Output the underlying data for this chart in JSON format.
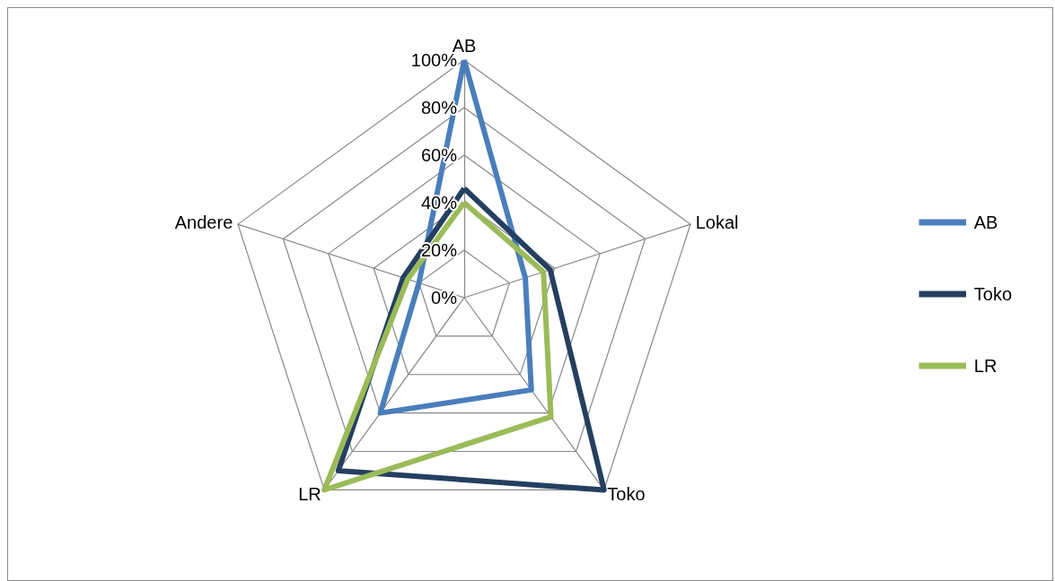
{
  "chart_data": {
    "type": "radar",
    "categories": [
      "AB",
      "Lokal",
      "Toko",
      "LR",
      "Andere"
    ],
    "series": [
      {
        "name": "AB",
        "color": "#4a7ebb",
        "values": [
          100,
          27,
          48,
          60,
          20
        ]
      },
      {
        "name": "Toko",
        "color": "#243f60",
        "values": [
          46,
          38,
          100,
          90,
          27
        ]
      },
      {
        "name": "LR",
        "color": "#9bbb59",
        "values": [
          40,
          35,
          62,
          100,
          25
        ]
      }
    ],
    "ylim": [
      0,
      100
    ],
    "yticks": [
      {
        "value": 0,
        "label": "0%"
      },
      {
        "value": 20,
        "label": "20%"
      },
      {
        "value": 40,
        "label": "40%"
      },
      {
        "value": 60,
        "label": "60%"
      },
      {
        "value": 80,
        "label": "80%"
      },
      {
        "value": 100,
        "label": "100%"
      }
    ],
    "legend": "right",
    "marker": "none",
    "line_style": "solid",
    "grid": true
  }
}
